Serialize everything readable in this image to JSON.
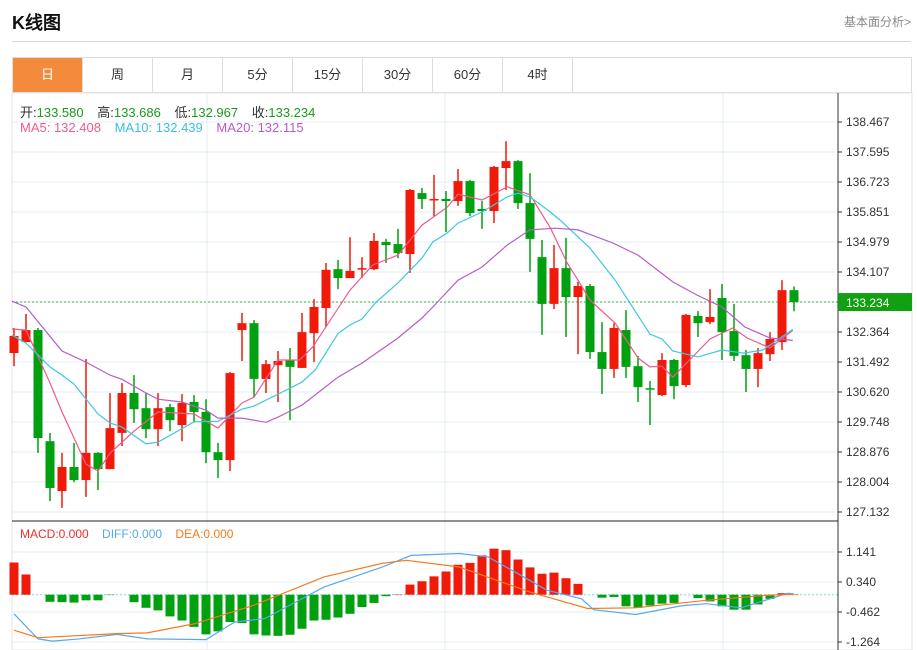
{
  "header": {
    "title": "K线图",
    "fundamental_link": "基本面分析>"
  },
  "tabs": [
    {
      "label": "日",
      "active": true
    },
    {
      "label": "周"
    },
    {
      "label": "月"
    },
    {
      "label": "5分"
    },
    {
      "label": "15分"
    },
    {
      "label": "30分"
    },
    {
      "label": "60分"
    },
    {
      "label": "4时"
    }
  ],
  "info": {
    "open_label": "开:",
    "open": "133.580",
    "high_label": "高:",
    "high": "133.686",
    "low_label": "低:",
    "low": "132.967",
    "close_label": "收:",
    "close": "133.234",
    "ma5": "MA5: 132.408",
    "ma10": "MA10: 132.439",
    "ma20": "MA20: 132.115"
  },
  "macd_info": {
    "macd": "MACD:0.000",
    "diff": "DIFF:0.000",
    "dea": "DEA:0.000"
  },
  "colors": {
    "up": "#f01a0a",
    "down": "#00a010",
    "ma5": "#ee5b8a",
    "ma10": "#3cc8e0",
    "ma20": "#b85cc8",
    "diff": "#5aa8e8",
    "dea": "#f47a20",
    "accent": "#f28c3c"
  },
  "chart_data": [
    {
      "type": "candlestick",
      "title": "K线图",
      "fields": [
        "open",
        "high",
        "low",
        "close"
      ],
      "y_ticks": [
        "138.467",
        "137.595",
        "136.723",
        "135.851",
        "134.979",
        "134.107",
        "133.234",
        "132.364",
        "131.492",
        "130.620",
        "129.748",
        "128.876",
        "128.004",
        "127.132"
      ],
      "ylim": [
        127.132,
        138.467
      ],
      "last_price": "133.234",
      "candles": [
        [
          131.75,
          132.48,
          131.37,
          132.25
        ],
        [
          132.07,
          132.89,
          132.07,
          132.42
        ],
        [
          132.42,
          132.48,
          128.85,
          129.28
        ],
        [
          129.19,
          129.43,
          127.45,
          127.83
        ],
        [
          127.74,
          128.85,
          127.25,
          128.44
        ],
        [
          128.44,
          129.14,
          128.0,
          128.06
        ],
        [
          128.06,
          131.58,
          127.57,
          128.85
        ],
        [
          128.85,
          128.87,
          127.77,
          128.38
        ],
        [
          128.38,
          130.59,
          128.38,
          129.57
        ],
        [
          129.43,
          130.88,
          129.05,
          130.59
        ],
        [
          130.59,
          131.11,
          129.72,
          130.12
        ],
        [
          130.15,
          130.59,
          129.28,
          129.54
        ],
        [
          129.54,
          130.59,
          129.05,
          130.15
        ],
        [
          130.18,
          130.27,
          129.48,
          129.8
        ],
        [
          129.66,
          130.56,
          129.19,
          130.3
        ],
        [
          130.33,
          130.53,
          129.75,
          130.04
        ],
        [
          130.04,
          130.41,
          128.55,
          128.87
        ],
        [
          128.87,
          129.14,
          128.12,
          128.64
        ],
        [
          128.64,
          131.2,
          128.32,
          131.17
        ],
        [
          132.42,
          132.92,
          131.52,
          132.62
        ],
        [
          132.62,
          132.71,
          130.47,
          131.0
        ],
        [
          131.0,
          131.55,
          130.59,
          131.43
        ],
        [
          131.4,
          131.81,
          130.33,
          131.52
        ],
        [
          131.55,
          131.9,
          129.8,
          131.35
        ],
        [
          131.32,
          132.92,
          131.32,
          132.36
        ],
        [
          132.33,
          133.32,
          131.49,
          133.09
        ],
        [
          133.06,
          134.37,
          132.51,
          134.17
        ],
        [
          134.19,
          134.46,
          133.61,
          133.93
        ],
        [
          133.93,
          135.12,
          133.93,
          134.14
        ],
        [
          134.19,
          134.54,
          133.93,
          134.22
        ],
        [
          134.19,
          135.24,
          134.16,
          135.01
        ],
        [
          134.98,
          135.07,
          134.37,
          134.89
        ],
        [
          134.92,
          135.36,
          134.51,
          134.66
        ],
        [
          134.63,
          136.52,
          134.08,
          136.49
        ],
        [
          136.4,
          136.55,
          135.94,
          136.23
        ],
        [
          136.2,
          136.93,
          135.71,
          136.23
        ],
        [
          136.23,
          136.46,
          135.27,
          136.17
        ],
        [
          136.17,
          137.1,
          136.03,
          136.75
        ],
        [
          136.75,
          136.78,
          135.73,
          135.82
        ],
        [
          135.94,
          136.17,
          135.36,
          135.88
        ],
        [
          135.88,
          137.19,
          135.53,
          137.16
        ],
        [
          137.13,
          137.91,
          136.49,
          137.33
        ],
        [
          137.33,
          137.36,
          135.94,
          136.11
        ],
        [
          136.11,
          136.98,
          134.11,
          135.07
        ],
        [
          134.54,
          135.04,
          132.28,
          133.18
        ],
        [
          133.18,
          134.89,
          133.03,
          134.22
        ],
        [
          134.22,
          135.1,
          132.22,
          133.38
        ],
        [
          133.38,
          133.82,
          131.72,
          133.7
        ],
        [
          133.7,
          133.76,
          131.58,
          131.78
        ],
        [
          131.78,
          132.65,
          130.56,
          131.29
        ],
        [
          131.29,
          132.62,
          131.03,
          132.48
        ],
        [
          132.42,
          133.0,
          131.03,
          131.35
        ],
        [
          131.37,
          131.67,
          130.33,
          130.76
        ],
        [
          130.73,
          130.94,
          129.66,
          130.7
        ],
        [
          130.53,
          131.75,
          130.5,
          131.55
        ],
        [
          131.55,
          131.58,
          130.41,
          130.79
        ],
        [
          130.82,
          132.89,
          130.76,
          132.86
        ],
        [
          132.83,
          132.97,
          132.22,
          132.62
        ],
        [
          132.65,
          133.61,
          132.59,
          132.8
        ],
        [
          133.35,
          133.76,
          131.55,
          132.36
        ],
        [
          132.39,
          133.18,
          131.52,
          131.67
        ],
        [
          131.69,
          131.84,
          130.62,
          131.29
        ],
        [
          131.29,
          131.9,
          130.76,
          131.75
        ],
        [
          131.72,
          132.36,
          131.52,
          132.16
        ],
        [
          132.07,
          133.87,
          131.84,
          133.58
        ],
        [
          133.58,
          133.686,
          132.967,
          133.234
        ]
      ],
      "ma_series": [
        {
          "name": "MA5",
          "points": [
            [
              -0.2,
              132.45
            ],
            [
              1,
              132.42
            ],
            [
              3,
              130.88
            ],
            [
              4,
              130.04
            ],
            [
              6,
              128.52
            ],
            [
              7,
              128.32
            ],
            [
              8,
              128.84
            ],
            [
              10,
              129.48
            ],
            [
              12,
              130.04
            ],
            [
              15,
              129.98
            ],
            [
              17,
              129.57
            ],
            [
              19,
              130.3
            ],
            [
              20,
              130.47
            ],
            [
              22,
              131.55
            ],
            [
              23.8,
              131.55
            ],
            [
              24.9,
              131.93
            ],
            [
              28,
              133.58
            ],
            [
              29.9,
              134.31
            ],
            [
              32,
              134.6
            ],
            [
              34,
              135.47
            ],
            [
              36.1,
              135.99
            ],
            [
              37,
              136.37
            ],
            [
              39,
              136.2
            ],
            [
              41.1,
              136.58
            ],
            [
              43,
              136.35
            ],
            [
              44.7,
              135.39
            ],
            [
              46.1,
              134.37
            ],
            [
              47,
              133.87
            ],
            [
              48,
              133.29
            ],
            [
              50.1,
              132.62
            ],
            [
              52,
              131.61
            ],
            [
              53,
              131.35
            ],
            [
              54,
              131.37
            ],
            [
              54.9,
              131.05
            ],
            [
              58,
              132.16
            ],
            [
              59.9,
              132.48
            ],
            [
              61.1,
              132.19
            ],
            [
              63,
              131.9
            ],
            [
              64.9,
              132.41
            ]
          ]
        },
        {
          "name": "MA10",
          "points": [
            [
              -0.2,
              132.27
            ],
            [
              1,
              132.04
            ],
            [
              3,
              131.35
            ],
            [
              4,
              131.11
            ],
            [
              5,
              130.85
            ],
            [
              7,
              129.98
            ],
            [
              8,
              129.72
            ],
            [
              9,
              129.6
            ],
            [
              11,
              129.11
            ],
            [
              12,
              129.16
            ],
            [
              15,
              129.75
            ],
            [
              17,
              129.77
            ],
            [
              19,
              130.12
            ],
            [
              20,
              130.21
            ],
            [
              22,
              130.56
            ],
            [
              23,
              130.73
            ],
            [
              24,
              130.91
            ],
            [
              25.1,
              131.26
            ],
            [
              27,
              132.32
            ],
            [
              28,
              132.57
            ],
            [
              29,
              132.74
            ],
            [
              30.1,
              133.21
            ],
            [
              32,
              133.79
            ],
            [
              34,
              134.51
            ],
            [
              34.9,
              134.98
            ],
            [
              36.1,
              135.24
            ],
            [
              37,
              135.53
            ],
            [
              39,
              135.85
            ],
            [
              41.1,
              136.29
            ],
            [
              42,
              136.4
            ],
            [
              43,
              136.29
            ],
            [
              44.7,
              135.85
            ],
            [
              45.5,
              135.62
            ],
            [
              48,
              134.8
            ],
            [
              50.1,
              133.87
            ],
            [
              53,
              132.3
            ],
            [
              54,
              132.16
            ],
            [
              54.9,
              131.81
            ],
            [
              57,
              131.64
            ],
            [
              59,
              131.84
            ],
            [
              60.8,
              131.75
            ],
            [
              62.4,
              131.84
            ],
            [
              64.9,
              132.44
            ]
          ]
        },
        {
          "name": "MA20",
          "points": [
            [
              -0.2,
              133.26
            ],
            [
              1,
              133.09
            ],
            [
              4,
              131.81
            ],
            [
              6,
              131.49
            ],
            [
              8,
              131.11
            ],
            [
              9,
              130.99
            ],
            [
              11,
              130.59
            ],
            [
              12,
              130.41
            ],
            [
              14,
              130.33
            ],
            [
              16,
              130.09
            ],
            [
              17,
              129.86
            ],
            [
              19,
              129.86
            ],
            [
              21,
              129.74
            ],
            [
              22,
              129.89
            ],
            [
              24,
              130.24
            ],
            [
              27,
              131.05
            ],
            [
              29,
              131.46
            ],
            [
              32,
              132.19
            ],
            [
              34,
              132.77
            ],
            [
              34.9,
              133.09
            ],
            [
              37,
              133.87
            ],
            [
              39,
              134.25
            ],
            [
              41.1,
              134.89
            ],
            [
              43,
              135.33
            ],
            [
              45.1,
              135.38
            ],
            [
              47,
              135.33
            ],
            [
              49.9,
              134.95
            ],
            [
              52,
              134.6
            ],
            [
              54.9,
              133.82
            ],
            [
              56.9,
              133.44
            ],
            [
              59,
              133.09
            ],
            [
              60.9,
              132.51
            ],
            [
              63,
              132.19
            ],
            [
              64.9,
              132.12
            ]
          ]
        }
      ]
    },
    {
      "type": "bar+line",
      "title": "MACD",
      "y_ticks": [
        "1.141",
        "0.340",
        "-0.462",
        "-1.264"
      ],
      "ylim": [
        -1.264,
        1.141
      ],
      "histogram": [
        0.86,
        0.54,
        0,
        -0.19,
        -0.2,
        -0.21,
        -0.15,
        -0.15,
        -0.01,
        0,
        -0.2,
        -0.35,
        -0.42,
        -0.58,
        -0.69,
        -0.86,
        -1.06,
        -0.98,
        -0.73,
        -0.76,
        -1.06,
        -1.09,
        -1.1,
        -1.07,
        -0.91,
        -0.69,
        -0.67,
        -0.61,
        -0.51,
        -0.33,
        -0.22,
        -0.04,
        0.01,
        0.27,
        0.36,
        0.49,
        0.62,
        0.8,
        0.85,
        1.05,
        1.23,
        1.19,
        0.94,
        0.73,
        0.56,
        0.59,
        0.44,
        0.29,
        0,
        -0.08,
        -0.06,
        -0.31,
        -0.35,
        -0.29,
        -0.24,
        -0.22,
        0,
        -0.09,
        -0.18,
        -0.31,
        -0.4,
        -0.4,
        -0.26,
        -0.11,
        0.04,
        0.01
      ],
      "diff": [
        [
          0,
          -0.51
        ],
        [
          2,
          -1.18
        ],
        [
          3.2,
          -1.24
        ],
        [
          5.2,
          -1.19
        ],
        [
          8.6,
          -1.06
        ],
        [
          11.1,
          -1.18
        ],
        [
          16,
          -1.2
        ],
        [
          18.4,
          -0.73
        ],
        [
          20.9,
          -0.64
        ],
        [
          25.8,
          0.2
        ],
        [
          30.7,
          0.74
        ],
        [
          33.1,
          1.05
        ],
        [
          37.1,
          1.1
        ],
        [
          39.5,
          1.01
        ],
        [
          42,
          0.56
        ],
        [
          44.4,
          0.12
        ],
        [
          47.3,
          -0.11
        ],
        [
          48.3,
          -0.4
        ],
        [
          51.8,
          -0.53
        ],
        [
          55.7,
          -0.29
        ],
        [
          57.7,
          -0.24
        ],
        [
          60.6,
          -0.35
        ],
        [
          64.5,
          0.04
        ],
        [
          65,
          0.02
        ]
      ],
      "dea": [
        [
          0,
          -0.95
        ],
        [
          2,
          -1.15
        ],
        [
          8.6,
          -1.04
        ],
        [
          11.1,
          -1.02
        ],
        [
          15,
          -0.78
        ],
        [
          19.9,
          -0.29
        ],
        [
          25.8,
          0.47
        ],
        [
          30.7,
          0.84
        ],
        [
          32.7,
          0.92
        ],
        [
          37.1,
          0.74
        ],
        [
          43,
          0.07
        ],
        [
          47.8,
          -0.37
        ],
        [
          51.8,
          -0.35
        ],
        [
          57.7,
          -0.15
        ],
        [
          62.6,
          -0.02
        ],
        [
          65,
          0.01
        ]
      ]
    }
  ]
}
